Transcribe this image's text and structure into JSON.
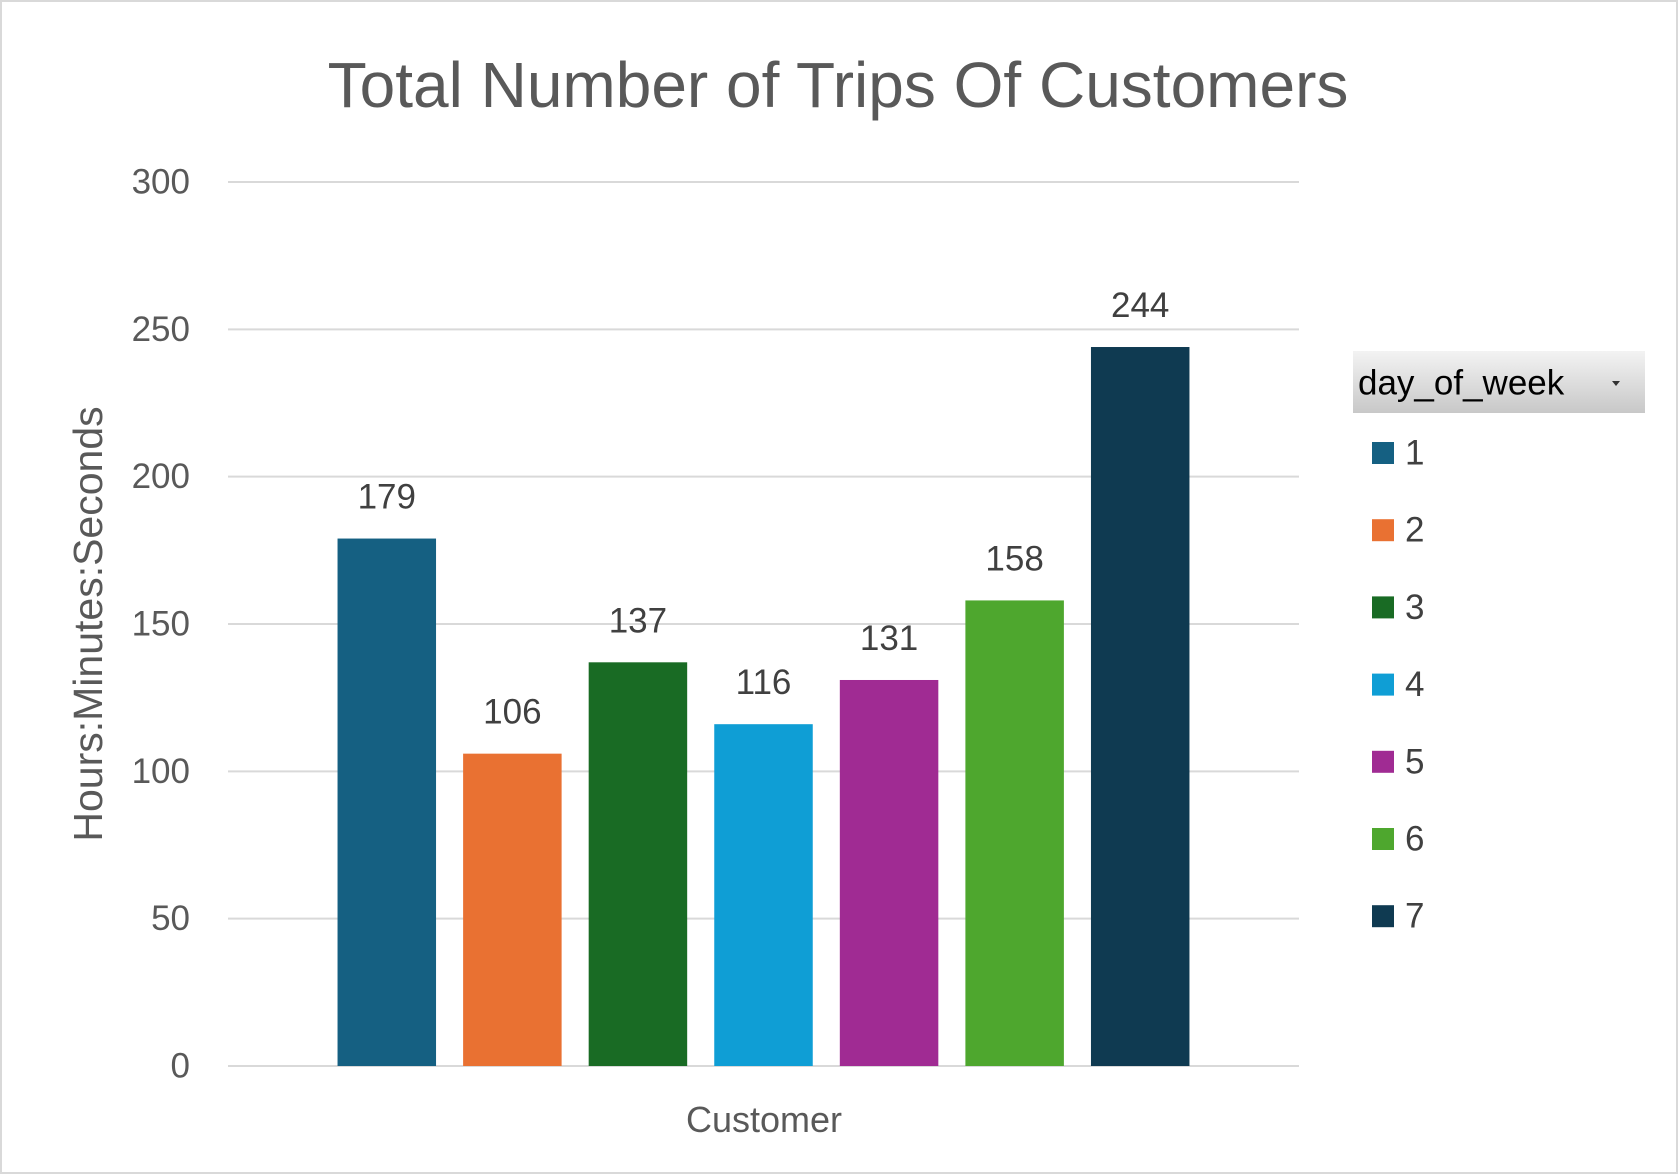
{
  "chart_data": {
    "type": "bar",
    "title": "Total Number of Trips Of Customers",
    "ylabel": "Hours:Minutes:Seconds",
    "categories": [
      "Customer"
    ],
    "ylim": [
      0,
      300
    ],
    "yticks": [
      0,
      50,
      100,
      150,
      200,
      250,
      300
    ],
    "grid": true,
    "data_labels": true,
    "legend": {
      "title": "day_of_week",
      "position": "right"
    },
    "series": [
      {
        "name": "1",
        "values": [
          179
        ],
        "color": "#156082"
      },
      {
        "name": "2",
        "values": [
          106
        ],
        "color": "#e97132"
      },
      {
        "name": "3",
        "values": [
          137
        ],
        "color": "#196b24"
      },
      {
        "name": "4",
        "values": [
          116
        ],
        "color": "#0f9ed5"
      },
      {
        "name": "5",
        "values": [
          131
        ],
        "color": "#a02b93"
      },
      {
        "name": "6",
        "values": [
          158
        ],
        "color": "#4ea72e"
      },
      {
        "name": "7",
        "values": [
          244
        ],
        "color": "#0f3a51"
      }
    ]
  }
}
